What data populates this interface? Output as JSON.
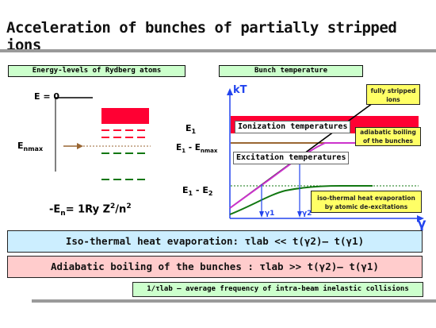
{
  "title": "Acceleration of bunches of partially stripped ions",
  "left_panel": {
    "header": "Energy-levels of Rydberg atoms",
    "e_zero": "E = 0",
    "e_nmax_main": "E",
    "e_nmax_sub": "nmax",
    "formula_pre": "-E",
    "formula_sub": "n",
    "formula_mid": "= 1Ry  Z",
    "formula_sup1": "2",
    "formula_mid2": "/n",
    "formula_sup2": "2"
  },
  "right_panel": {
    "header": "Bunch temperature",
    "y_axis": "kT",
    "x_axis": "γ",
    "label_e1": "E",
    "label_e1_sub": "1",
    "label_e1_enmax": "E",
    "label_e1_enmax_sub1": "1",
    "label_e1_enmax_mid": " - E",
    "label_e1_enmax_sub2": "nmax",
    "label_e1_e2": "E",
    "label_e1_e2_sub1": "1",
    "label_e1_e2_mid": " - E",
    "label_e1_e2_sub2": "2",
    "ionization": "Ionization temperatures",
    "excitation": "Excitation temperatures",
    "fully_stripped_line1": "fully stripped",
    "fully_stripped_line2": "ions",
    "adiabatic_line1": "adiabatic boiling",
    "adiabatic_line2": "of the bunches",
    "isothermal_line1": "iso-thermal heat evaporation",
    "isothermal_line2": "by atomic de-excitations",
    "gamma1": "γ1",
    "gamma2": "γ2"
  },
  "equation_1": "Iso-thermal heat evaporation:    τlab << t(γ2)– t(γ1)",
  "equation_2": "Adiabatic boiling of the bunches : τlab >> t(γ2)– t(γ1)",
  "note": "1/τlab – average frequency of intra-beam inelastic collisions",
  "colors": {
    "pale_green": "#ccffcc",
    "pale_blue": "#cceeff",
    "pale_pink": "#ffcccc",
    "yellow": "#ffff66",
    "red": "#ff0033",
    "green": "#117711",
    "magenta": "#cc33cc",
    "blue": "#2244ee",
    "brown": "#996633"
  }
}
